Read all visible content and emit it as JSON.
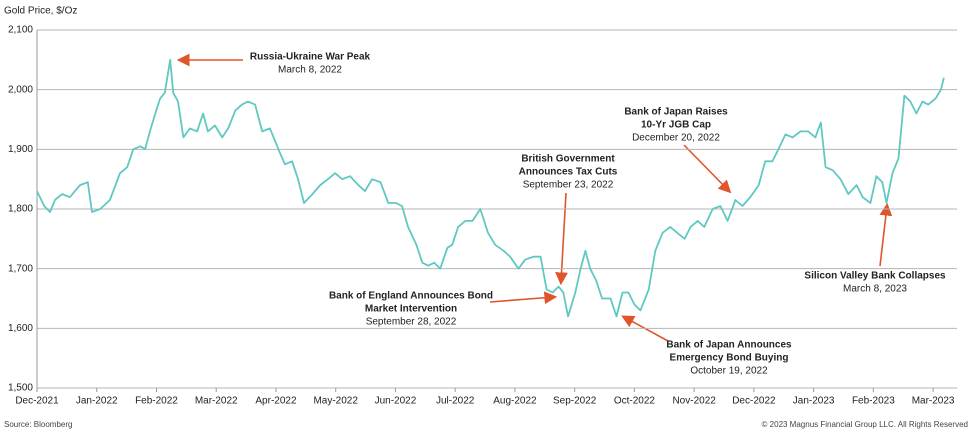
{
  "chart_data": {
    "type": "line",
    "title": "Gold Price, $/Oz",
    "source": "Source: Bloomberg",
    "copyright": "© 2023 Magnus Financial Group LLC. All Rights Reserved",
    "xlim": [
      0,
      15.4
    ],
    "ylim": [
      1500,
      2100
    ],
    "yticks": [
      {
        "value": 1500,
        "label": "1,500"
      },
      {
        "value": 1600,
        "label": "1,600"
      },
      {
        "value": 1700,
        "label": "1,700"
      },
      {
        "value": 1800,
        "label": "1,800"
      },
      {
        "value": 1900,
        "label": "1,900"
      },
      {
        "value": 2000,
        "label": "2,000"
      },
      {
        "value": 2100,
        "label": "2,100"
      }
    ],
    "xticks": [
      {
        "value": 0,
        "label": "Dec-2021"
      },
      {
        "value": 1,
        "label": "Jan-2022"
      },
      {
        "value": 2,
        "label": "Feb-2022"
      },
      {
        "value": 3,
        "label": "Mar-2022"
      },
      {
        "value": 4,
        "label": "Apr-2022"
      },
      {
        "value": 5,
        "label": "May-2022"
      },
      {
        "value": 6,
        "label": "Jun-2022"
      },
      {
        "value": 7,
        "label": "Jul-2022"
      },
      {
        "value": 8,
        "label": "Aug-2022"
      },
      {
        "value": 9,
        "label": "Sep-2022"
      },
      {
        "value": 10,
        "label": "Oct-2022"
      },
      {
        "value": 11,
        "label": "Nov-2022"
      },
      {
        "value": 12,
        "label": "Dec-2022"
      },
      {
        "value": 13,
        "label": "Jan-2023"
      },
      {
        "value": 14,
        "label": "Feb-2023"
      },
      {
        "value": 15,
        "label": "Mar-2023"
      }
    ],
    "grid": true,
    "color": "#5fc9c1",
    "x": [
      0,
      0.12,
      0.22,
      0.3,
      0.42,
      0.55,
      0.72,
      0.85,
      0.92,
      1.06,
      1.22,
      1.39,
      1.51,
      1.61,
      1.73,
      1.81,
      1.89,
      1.98,
      2.06,
      2.14,
      2.23,
      2.28,
      2.36,
      2.45,
      2.56,
      2.68,
      2.78,
      2.86,
      2.98,
      3.1,
      3.2,
      3.32,
      3.43,
      3.53,
      3.65,
      3.77,
      3.9,
      4.04,
      4.15,
      4.27,
      4.37,
      4.47,
      4.61,
      4.74,
      4.87,
      4.99,
      5.11,
      5.24,
      5.38,
      5.49,
      5.61,
      5.75,
      5.88,
      6.01,
      6.11,
      6.21,
      6.35,
      6.45,
      6.55,
      6.65,
      6.75,
      6.87,
      6.95,
      7.05,
      7.17,
      7.29,
      7.42,
      7.55,
      7.67,
      7.81,
      7.92,
      8.06,
      8.17,
      8.31,
      8.43,
      8.53,
      8.63,
      8.73,
      8.81,
      8.89,
      9.01,
      9.1,
      9.18,
      9.26,
      9.36,
      9.46,
      9.6,
      9.7,
      9.8,
      9.9,
      10,
      10.1,
      10.24,
      10.35,
      10.47,
      10.6,
      10.72,
      10.84,
      10.94,
      11.06,
      11.17,
      11.31,
      11.44,
      11.56,
      11.69,
      11.81,
      11.94,
      12.08,
      12.19,
      12.31,
      12.41,
      12.53,
      12.65,
      12.78,
      12.91,
      13.03,
      13.12,
      13.2,
      13.32,
      13.45,
      13.58,
      13.72,
      13.82,
      13.95,
      14.05,
      14.15,
      14.22,
      14.32,
      14.42,
      14.52,
      14.62,
      14.72,
      14.82,
      14.92,
      15.04,
      15.13,
      15.18
    ],
    "values": [
      1830,
      1805,
      1795,
      1815,
      1825,
      1820,
      1840,
      1845,
      1795,
      1800,
      1815,
      1860,
      1870,
      1900,
      1905,
      1900,
      1930,
      1960,
      1985,
      1995,
      2050,
      1995,
      1980,
      1920,
      1935,
      1930,
      1960,
      1930,
      1940,
      1920,
      1935,
      1965,
      1975,
      1980,
      1975,
      1930,
      1935,
      1900,
      1875,
      1880,
      1850,
      1810,
      1825,
      1840,
      1850,
      1860,
      1850,
      1855,
      1840,
      1830,
      1850,
      1845,
      1810,
      1810,
      1805,
      1770,
      1740,
      1710,
      1705,
      1710,
      1700,
      1735,
      1740,
      1770,
      1780,
      1780,
      1800,
      1760,
      1740,
      1730,
      1720,
      1700,
      1715,
      1720,
      1720,
      1665,
      1660,
      1670,
      1660,
      1620,
      1660,
      1700,
      1730,
      1700,
      1680,
      1650,
      1650,
      1620,
      1660,
      1660,
      1640,
      1630,
      1665,
      1730,
      1760,
      1770,
      1760,
      1750,
      1770,
      1780,
      1770,
      1800,
      1805,
      1780,
      1815,
      1805,
      1820,
      1840,
      1880,
      1880,
      1900,
      1925,
      1920,
      1930,
      1930,
      1920,
      1945,
      1870,
      1865,
      1850,
      1825,
      1840,
      1820,
      1810,
      1855,
      1845,
      1810,
      1860,
      1885,
      1990,
      1980,
      1960,
      1980,
      1975,
      1985,
      2000,
      2020
    ],
    "annotations": [
      {
        "lines": [
          "Russia-Ukraine War Peak"
        ],
        "date": "March 8, 2022"
      },
      {
        "lines": [
          "British Government",
          "Announces Tax Cuts"
        ],
        "date": "September 23, 2022"
      },
      {
        "lines": [
          "Bank of England Announces Bond",
          "Market Intervention"
        ],
        "date": "September 28, 2022"
      },
      {
        "lines": [
          "Bank of Japan Announces",
          "Emergency Bond Buying"
        ],
        "date": "October 19, 2022"
      },
      {
        "lines": [
          "Bank of Japan Raises",
          "10-Yr JGB Cap"
        ],
        "date": "December 20, 2022"
      },
      {
        "lines": [
          "Silicon Valley Bank Collapses"
        ],
        "date": "March 8, 2023"
      }
    ]
  }
}
